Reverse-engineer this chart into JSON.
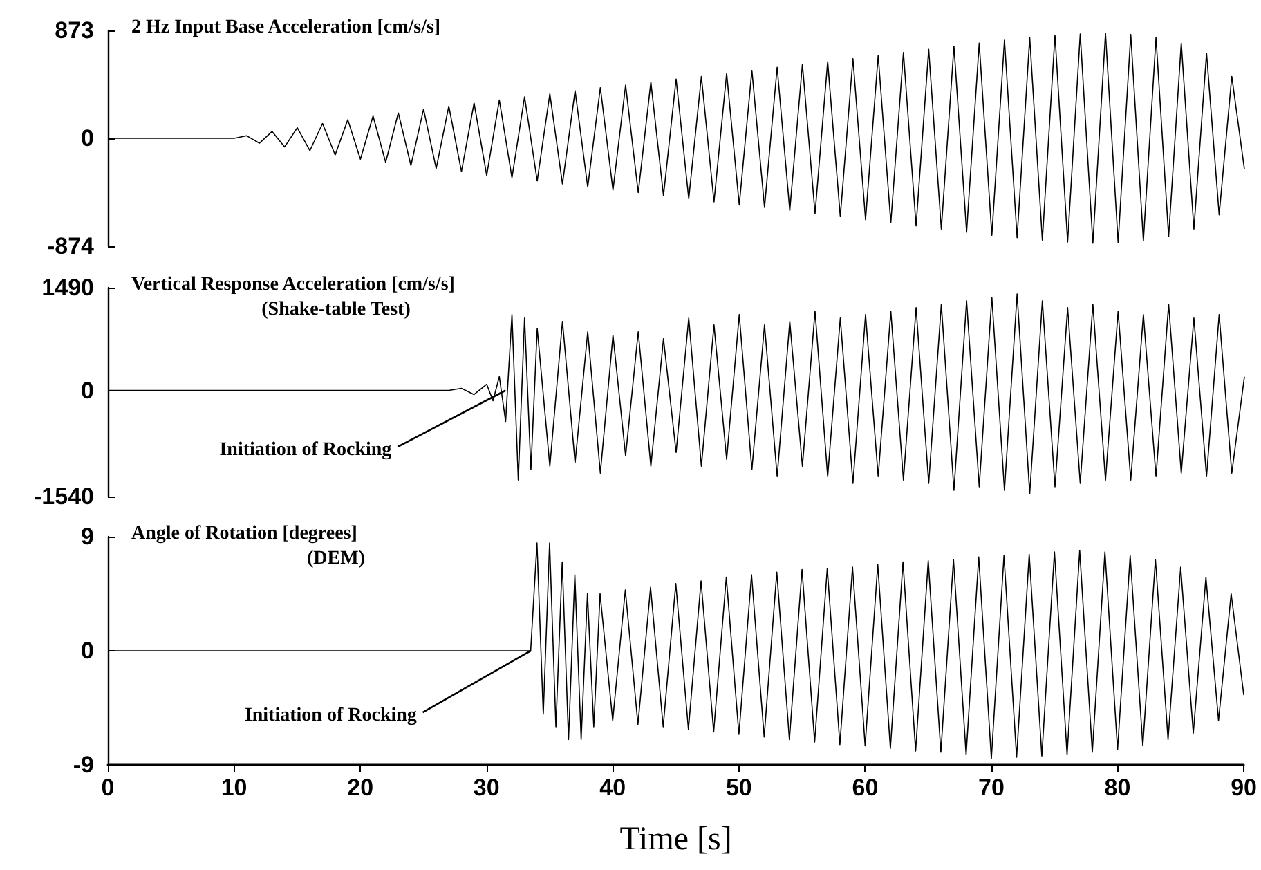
{
  "chart_data": [
    {
      "type": "line",
      "title": "2 Hz Input Base Acceleration [cm/s/s]",
      "tick_labels": "y",
      "xlim": [
        0,
        90
      ],
      "ylim": [
        -874,
        873
      ],
      "yticks": [
        -874,
        0,
        873
      ],
      "series": [
        {
          "color": "#000000",
          "x": [
            0,
            10,
            11,
            12,
            13,
            14,
            15,
            16,
            17,
            18,
            19,
            20,
            21,
            22,
            23,
            24,
            25,
            26,
            27,
            28,
            29,
            30,
            31,
            32,
            33,
            34,
            35,
            36,
            37,
            38,
            39,
            40,
            41,
            42,
            43,
            44,
            45,
            46,
            47,
            48,
            49,
            50,
            51,
            52,
            53,
            54,
            55,
            56,
            57,
            58,
            59,
            60,
            61,
            62,
            63,
            64,
            65,
            66,
            67,
            68,
            69,
            70,
            71,
            72,
            73,
            74,
            75,
            76,
            77,
            78,
            79,
            80,
            81,
            82,
            83,
            84,
            85,
            86,
            87,
            88,
            89,
            90
          ],
          "values": [
            0,
            0,
            20,
            -40,
            55,
            -70,
            85,
            -100,
            120,
            -135,
            150,
            -170,
            180,
            -195,
            205,
            -220,
            235,
            -245,
            260,
            -270,
            285,
            -300,
            310,
            -320,
            335,
            -345,
            360,
            -370,
            385,
            -395,
            410,
            -420,
            430,
            -440,
            455,
            -465,
            480,
            -490,
            500,
            -515,
            525,
            -540,
            550,
            -560,
            575,
            -585,
            600,
            -610,
            620,
            -635,
            645,
            -660,
            670,
            -685,
            695,
            -710,
            720,
            -735,
            745,
            -760,
            770,
            -785,
            795,
            -805,
            815,
            -825,
            835,
            -840,
            845,
            -850,
            850,
            -845,
            840,
            -830,
            815,
            -795,
            770,
            -735,
            690,
            -620,
            500,
            -250
          ]
        }
      ]
    },
    {
      "type": "line",
      "title": "Vertical Response Acceleration [cm/s/s]",
      "subtitle": "(Shake-table Test)",
      "tick_labels": "y",
      "xlim": [
        0,
        90
      ],
      "ylim": [
        -1540,
        1490
      ],
      "yticks": [
        -1540,
        0,
        1490
      ],
      "annotations": [
        {
          "text": "Initiation of Rocking",
          "x": 31.5,
          "y": 0
        }
      ],
      "series": [
        {
          "color": "#000000",
          "x": [
            0,
            27,
            28,
            29,
            30,
            30.5,
            31,
            31.5,
            32,
            32.5,
            33,
            33.5,
            34,
            35,
            36,
            37,
            38,
            39,
            40,
            41,
            42,
            43,
            44,
            45,
            46,
            47,
            48,
            49,
            50,
            51,
            52,
            53,
            54,
            55,
            56,
            57,
            58,
            59,
            60,
            61,
            62,
            63,
            64,
            65,
            66,
            67,
            68,
            69,
            70,
            71,
            72,
            73,
            74,
            75,
            76,
            77,
            78,
            79,
            80,
            81,
            82,
            83,
            84,
            85,
            86,
            87,
            88,
            89,
            90
          ],
          "values": [
            0,
            0,
            30,
            -60,
            90,
            -150,
            200,
            -450,
            1100,
            -1300,
            1050,
            -1150,
            900,
            -1100,
            1000,
            -1050,
            850,
            -1200,
            800,
            -950,
            850,
            -1100,
            750,
            -900,
            1050,
            -1100,
            950,
            -1000,
            1100,
            -1150,
            950,
            -1250,
            1000,
            -1100,
            1150,
            -1250,
            1050,
            -1350,
            1100,
            -1250,
            1150,
            -1300,
            1200,
            -1350,
            1250,
            -1450,
            1300,
            -1400,
            1350,
            -1450,
            1400,
            -1500,
            1300,
            -1400,
            1200,
            -1350,
            1250,
            -1300,
            1150,
            -1300,
            1100,
            -1250,
            1250,
            -1200,
            1050,
            -1250,
            1100,
            -1200,
            200
          ]
        }
      ]
    },
    {
      "type": "line",
      "title": "Angle of Rotation [degrees]",
      "subtitle": "(DEM)",
      "xlabel": "Time [s]",
      "xlim": [
        0,
        90
      ],
      "xticks": [
        0,
        10,
        20,
        30,
        40,
        50,
        60,
        70,
        80,
        90
      ],
      "ylim": [
        -9,
        9
      ],
      "yticks": [
        -9,
        0,
        9
      ],
      "annotations": [
        {
          "text": "Initiation of Rocking",
          "x": 33.5,
          "y": 0
        }
      ],
      "series": [
        {
          "color": "#000000",
          "x": [
            0,
            33.5,
            34,
            34.5,
            35,
            35.5,
            36,
            36.5,
            37,
            37.5,
            38,
            38.5,
            39,
            40,
            41,
            42,
            43,
            44,
            45,
            46,
            47,
            48,
            49,
            50,
            51,
            52,
            53,
            54,
            55,
            56,
            57,
            58,
            59,
            60,
            61,
            62,
            63,
            64,
            65,
            66,
            67,
            68,
            69,
            70,
            71,
            72,
            73,
            74,
            75,
            76,
            77,
            78,
            79,
            80,
            81,
            82,
            83,
            84,
            85,
            86,
            87,
            88,
            89,
            90
          ],
          "values": [
            0,
            0,
            8.5,
            -5,
            8.5,
            -6,
            7,
            -7,
            6,
            -7,
            4.5,
            -6,
            4.5,
            -5.5,
            4.8,
            -5.8,
            5,
            -6,
            5.3,
            -6.2,
            5.5,
            -6.4,
            5.8,
            -6.6,
            6,
            -6.8,
            6.2,
            -7,
            6.4,
            -7.2,
            6.5,
            -7.4,
            6.6,
            -7.5,
            6.8,
            -7.7,
            7,
            -7.9,
            7.1,
            -8,
            7.2,
            -8.2,
            7.4,
            -8.5,
            7.5,
            -8.4,
            7.6,
            -8.3,
            7.8,
            -8.2,
            7.9,
            -8,
            7.8,
            -7.8,
            7.5,
            -7.5,
            7.2,
            -7,
            6.6,
            -6.5,
            5.8,
            -5.5,
            4.5,
            -3.5
          ]
        }
      ]
    }
  ]
}
